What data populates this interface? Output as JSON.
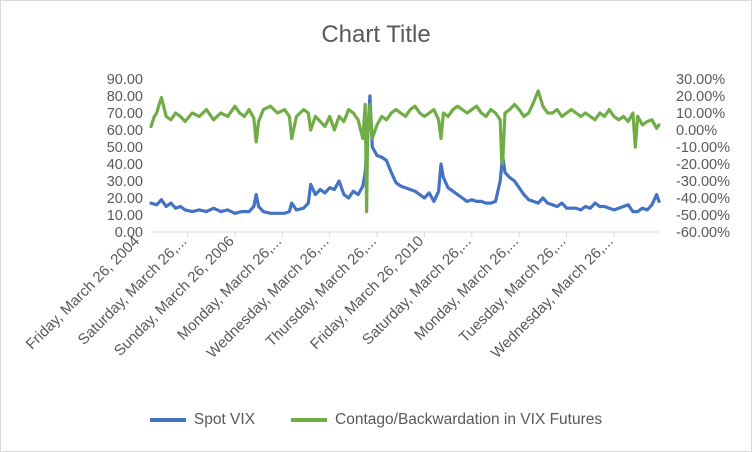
{
  "chart_data": {
    "type": "line",
    "title": "Chart Title",
    "x_tick_labels": [
      "Friday, March 26, 2004",
      "Saturday, March 26,...",
      "Sunday, March 26, 2006",
      "Monday, March 26,...",
      "Wednesday, March 26,...",
      "Thursday, March 26,...",
      "Friday, March 26, 2010",
      "Saturday, March 26,...",
      "Monday, March 26,...",
      "Tuesday, March 26,...",
      "Wednesday, March 26,..."
    ],
    "x_tick_years": [
      2004,
      2005,
      2006,
      2007,
      2008,
      2009,
      2010,
      2011,
      2012,
      2013,
      2014
    ],
    "xlim_years": [
      2004.23,
      2014.95
    ],
    "y_left": {
      "ticks": [
        "0.00",
        "10.00",
        "20.00",
        "30.00",
        "40.00",
        "50.00",
        "60.00",
        "70.00",
        "80.00",
        "90.00"
      ],
      "ylim": [
        0,
        90
      ]
    },
    "y_right": {
      "ticks": [
        "-60.00%",
        "-50.00%",
        "-40.00%",
        "-30.00%",
        "-20.00%",
        "-10.00%",
        "0.00%",
        "10.00%",
        "20.00%",
        "30.00%"
      ],
      "ylim": [
        -60,
        30
      ]
    },
    "grid": false,
    "legend_position": "bottom",
    "series": [
      {
        "name": "Spot VIX",
        "axis": "left",
        "color": "#4472c4",
        "x": [
          2004.23,
          2004.35,
          2004.45,
          2004.55,
          2004.65,
          2004.75,
          2004.85,
          2004.95,
          2005.1,
          2005.25,
          2005.4,
          2005.55,
          2005.7,
          2005.85,
          2006.0,
          2006.15,
          2006.3,
          2006.4,
          2006.45,
          2006.5,
          2006.6,
          2006.75,
          2006.9,
          2007.05,
          2007.15,
          2007.2,
          2007.3,
          2007.45,
          2007.55,
          2007.6,
          2007.7,
          2007.8,
          2007.9,
          2008.0,
          2008.1,
          2008.2,
          2008.3,
          2008.4,
          2008.5,
          2008.6,
          2008.7,
          2008.75,
          2008.8,
          2008.85,
          2008.9,
          2009.0,
          2009.1,
          2009.2,
          2009.3,
          2009.4,
          2009.5,
          2009.6,
          2009.7,
          2009.8,
          2009.9,
          2010.0,
          2010.1,
          2010.2,
          2010.3,
          2010.35,
          2010.4,
          2010.5,
          2010.6,
          2010.7,
          2010.8,
          2010.9,
          2011.0,
          2011.1,
          2011.2,
          2011.3,
          2011.4,
          2011.5,
          2011.6,
          2011.65,
          2011.7,
          2011.8,
          2011.9,
          2012.0,
          2012.1,
          2012.2,
          2012.3,
          2012.4,
          2012.5,
          2012.6,
          2012.7,
          2012.8,
          2012.9,
          2013.0,
          2013.1,
          2013.2,
          2013.3,
          2013.4,
          2013.5,
          2013.6,
          2013.7,
          2013.8,
          2013.9,
          2014.0,
          2014.1,
          2014.2,
          2014.3,
          2014.4,
          2014.5,
          2014.6,
          2014.7,
          2014.8,
          2014.9,
          2014.95
        ],
        "values": [
          17,
          16,
          19,
          15,
          17,
          14,
          15,
          13,
          12,
          13,
          12,
          14,
          12,
          13,
          11,
          12,
          12,
          15,
          22,
          15,
          12,
          11,
          11,
          11,
          12,
          17,
          13,
          14,
          17,
          28,
          22,
          25,
          23,
          26,
          25,
          30,
          22,
          20,
          24,
          22,
          27,
          35,
          55,
          80,
          50,
          45,
          44,
          42,
          35,
          29,
          27,
          26,
          25,
          24,
          22,
          20,
          23,
          18,
          24,
          40,
          32,
          26,
          24,
          22,
          20,
          18,
          19,
          18,
          18,
          17,
          17,
          18,
          30,
          45,
          35,
          32,
          30,
          26,
          22,
          19,
          18,
          17,
          20,
          17,
          16,
          15,
          17,
          14,
          14,
          14,
          13,
          15,
          14,
          17,
          15,
          15,
          14,
          13,
          14,
          15,
          16,
          12,
          12,
          14,
          13,
          16,
          22,
          18
        ]
      },
      {
        "name": "Contago/Backwardation in VIX Futures",
        "axis": "right",
        "color": "#70ad47",
        "x": [
          2004.23,
          2004.3,
          2004.35,
          2004.4,
          2004.45,
          2004.55,
          2004.65,
          2004.75,
          2004.85,
          2004.95,
          2005.1,
          2005.25,
          2005.4,
          2005.55,
          2005.7,
          2005.85,
          2006.0,
          2006.1,
          2006.2,
          2006.3,
          2006.4,
          2006.45,
          2006.5,
          2006.6,
          2006.75,
          2006.9,
          2007.05,
          2007.15,
          2007.2,
          2007.3,
          2007.45,
          2007.55,
          2007.6,
          2007.7,
          2007.8,
          2007.9,
          2008.0,
          2008.1,
          2008.2,
          2008.3,
          2008.4,
          2008.5,
          2008.6,
          2008.7,
          2008.75,
          2008.78,
          2008.8,
          2008.85,
          2008.9,
          2009.0,
          2009.1,
          2009.2,
          2009.3,
          2009.4,
          2009.5,
          2009.6,
          2009.7,
          2009.8,
          2009.9,
          2010.0,
          2010.1,
          2010.2,
          2010.3,
          2010.35,
          2010.4,
          2010.5,
          2010.6,
          2010.7,
          2010.8,
          2010.9,
          2011.0,
          2011.1,
          2011.2,
          2011.3,
          2011.4,
          2011.5,
          2011.6,
          2011.63,
          2011.65,
          2011.7,
          2011.8,
          2011.9,
          2012.0,
          2012.1,
          2012.2,
          2012.3,
          2012.4,
          2012.5,
          2012.6,
          2012.7,
          2012.8,
          2012.9,
          2013.0,
          2013.1,
          2013.2,
          2013.3,
          2013.4,
          2013.5,
          2013.6,
          2013.7,
          2013.8,
          2013.9,
          2014.0,
          2014.1,
          2014.2,
          2014.3,
          2014.4,
          2014.45,
          2014.5,
          2014.6,
          2014.7,
          2014.8,
          2014.9,
          2014.95
        ],
        "values": [
          2,
          8,
          10,
          15,
          19,
          8,
          6,
          10,
          8,
          5,
          10,
          8,
          12,
          6,
          10,
          8,
          14,
          10,
          8,
          12,
          7,
          -7,
          5,
          12,
          14,
          10,
          12,
          8,
          -5,
          8,
          12,
          10,
          0,
          8,
          5,
          2,
          8,
          0,
          8,
          5,
          12,
          10,
          6,
          -5,
          15,
          -48,
          -5,
          15,
          -5,
          3,
          8,
          6,
          10,
          12,
          10,
          8,
          12,
          14,
          10,
          8,
          10,
          12,
          6,
          -5,
          10,
          8,
          12,
          14,
          12,
          10,
          12,
          14,
          10,
          8,
          12,
          10,
          6,
          -18,
          -20,
          10,
          12,
          15,
          12,
          8,
          10,
          16,
          23,
          14,
          10,
          10,
          12,
          8,
          10,
          12,
          10,
          8,
          10,
          8,
          6,
          10,
          8,
          12,
          8,
          6,
          8,
          5,
          10,
          -10,
          8,
          3,
          5,
          6,
          1,
          3
        ]
      }
    ]
  }
}
